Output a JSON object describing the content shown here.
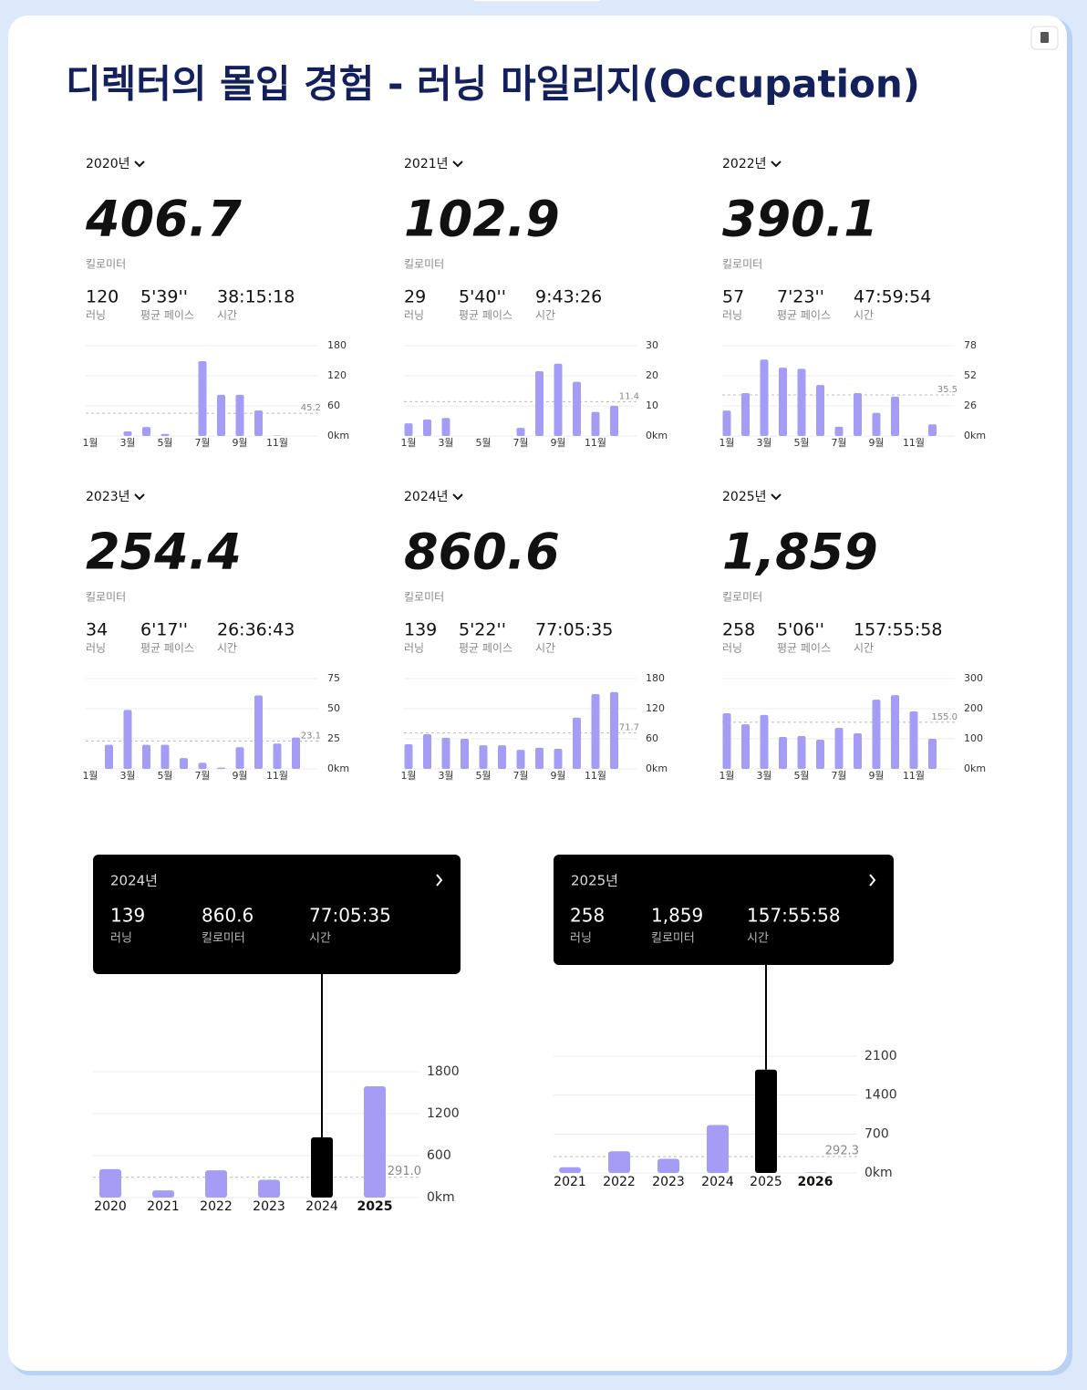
{
  "header": {
    "title": "디렉터의 몰입 경험 - 러닝 마일리지(Occupation)"
  },
  "chart_data": [
    {
      "type": "bar",
      "title": "2020년",
      "total": "406.7",
      "total_unit": "킬로미터",
      "stats": [
        {
          "value": "120",
          "label": "러닝"
        },
        {
          "value": "5'39''",
          "label": "평균 페이스"
        },
        {
          "value": "38:15:18",
          "label": "시간"
        }
      ],
      "categories": [
        "1월",
        null,
        "3월",
        null,
        "5월",
        null,
        "7월",
        null,
        "9월",
        null,
        "11월",
        null
      ],
      "values": [
        0,
        0,
        9,
        18,
        4,
        0,
        149,
        82,
        82,
        51,
        1,
        0
      ],
      "color": "#a59df5",
      "ylim": [
        0,
        180
      ],
      "yticks": [
        {
          "value": 0,
          "label": "0km"
        },
        60,
        120,
        180
      ],
      "average": 45.2
    },
    {
      "type": "bar",
      "title": "2021년",
      "total": "102.9",
      "total_unit": "킬로미터",
      "stats": [
        {
          "value": "29",
          "label": "러닝"
        },
        {
          "value": "5'40''",
          "label": "평균 페이스"
        },
        {
          "value": "9:43:26",
          "label": "시간"
        }
      ],
      "categories": [
        "1월",
        null,
        "3월",
        null,
        "5월",
        null,
        "7월",
        null,
        "9월",
        null,
        "11월",
        null
      ],
      "values": [
        4.2,
        5.5,
        6,
        0,
        0,
        0,
        2.7,
        21.5,
        24,
        18,
        8,
        10
      ],
      "color": "#a59df5",
      "ylim": [
        0,
        30
      ],
      "yticks": [
        {
          "value": 0,
          "label": "0km"
        },
        10,
        20,
        30
      ],
      "average": 11.4
    },
    {
      "type": "bar",
      "title": "2022년",
      "total": "390.1",
      "total_unit": "킬로미터",
      "stats": [
        {
          "value": "57",
          "label": "러닝"
        },
        {
          "value": "7'23''",
          "label": "평균 페이스"
        },
        {
          "value": "47:59:54",
          "label": "시간"
        }
      ],
      "categories": [
        "1월",
        null,
        "3월",
        null,
        "5월",
        null,
        "7월",
        null,
        "9월",
        null,
        "11월",
        null
      ],
      "values": [
        22,
        37,
        66,
        59,
        58,
        44,
        8,
        37,
        20,
        34,
        0,
        10
      ],
      "color": "#a59df5",
      "ylim": [
        0,
        78
      ],
      "yticks": [
        {
          "value": 0,
          "label": "0km"
        },
        26,
        52,
        78
      ],
      "average": 35.5
    },
    {
      "type": "bar",
      "title": "2023년",
      "total": "254.4",
      "total_unit": "킬로미터",
      "stats": [
        {
          "value": "34",
          "label": "러닝"
        },
        {
          "value": "6'17''",
          "label": "평균 페이스"
        },
        {
          "value": "26:36:43",
          "label": "시간"
        }
      ],
      "categories": [
        "1월",
        null,
        "3월",
        null,
        "5월",
        null,
        "7월",
        null,
        "9월",
        null,
        "11월",
        null
      ],
      "values": [
        0,
        20,
        49,
        20,
        20,
        9,
        5,
        1,
        18,
        61,
        21,
        26
      ],
      "color": "#a59df5",
      "ylim": [
        0,
        75
      ],
      "yticks": [
        {
          "value": 0,
          "label": "0km"
        },
        25,
        50,
        75
      ],
      "average": 23.1
    },
    {
      "type": "bar",
      "title": "2024년",
      "total": "860.6",
      "total_unit": "킬로미터",
      "stats": [
        {
          "value": "139",
          "label": "러닝"
        },
        {
          "value": "5'22''",
          "label": "평균 페이스"
        },
        {
          "value": "77:05:35",
          "label": "시간"
        }
      ],
      "categories": [
        "1월",
        null,
        "3월",
        null,
        "5월",
        null,
        "7월",
        null,
        "9월",
        null,
        "11월",
        null
      ],
      "values": [
        49,
        69,
        62,
        60,
        47,
        47,
        38,
        42,
        40,
        102,
        149,
        153
      ],
      "color": "#a59df5",
      "ylim": [
        0,
        180
      ],
      "yticks": [
        {
          "value": 0,
          "label": "0km"
        },
        60,
        120,
        180
      ],
      "average": 71.7
    },
    {
      "type": "bar",
      "title": "2025년",
      "total": "1,859",
      "total_unit": "킬로미터",
      "stats": [
        {
          "value": "258",
          "label": "러닝"
        },
        {
          "value": "5'06''",
          "label": "평균 페이스"
        },
        {
          "value": "157:55:58",
          "label": "시간"
        }
      ],
      "categories": [
        "1월",
        null,
        "3월",
        null,
        "5월",
        null,
        "7월",
        null,
        "9월",
        null,
        "11월",
        null
      ],
      "values": [
        185,
        148,
        179,
        106,
        109,
        97,
        136,
        118,
        230,
        245,
        191,
        100
      ],
      "color": "#a59df5",
      "ylim": [
        0,
        300
      ],
      "yticks": [
        {
          "value": 0,
          "label": "0km"
        },
        100,
        200,
        300
      ],
      "average": {
        "value": 155,
        "label": "155.0"
      }
    },
    {
      "type": "bar",
      "title": "2024년",
      "stats": [
        {
          "value": "139",
          "label": "러닝"
        },
        {
          "value": "860.6",
          "label": "킬로미터"
        },
        {
          "value": "77:05:35",
          "label": "시간"
        }
      ],
      "categories": [
        "2020",
        "2021",
        "2022",
        "2023",
        "2024",
        "2025"
      ],
      "values": [
        406.7,
        102.9,
        390.1,
        254.4,
        860.6,
        1591
      ],
      "color": "#a59df5",
      "highlight": 4,
      "highlight_color": "#000000",
      "ylim": [
        0,
        1800
      ],
      "yticks": [
        {
          "value": 0,
          "label": "0km"
        },
        600,
        1200,
        1800
      ],
      "average": {
        "value": 291,
        "label": "291.0"
      }
    },
    {
      "type": "bar",
      "title": "2025년",
      "stats": [
        {
          "value": "258",
          "label": "러닝"
        },
        {
          "value": "1,859",
          "label": "킬로미터"
        },
        {
          "value": "157:55:58",
          "label": "시간"
        }
      ],
      "categories": [
        "2021",
        "2022",
        "2023",
        "2024",
        "2025",
        "2026"
      ],
      "values": [
        102.9,
        390.1,
        254.4,
        860.6,
        1859,
        8
      ],
      "color": "#a59df5",
      "highlight": 4,
      "highlight_color": "#000000",
      "ylim": [
        0,
        2100
      ],
      "yticks": [
        {
          "value": 0,
          "label": "0km"
        },
        700,
        1400,
        2100
      ],
      "average": 292.3
    }
  ]
}
